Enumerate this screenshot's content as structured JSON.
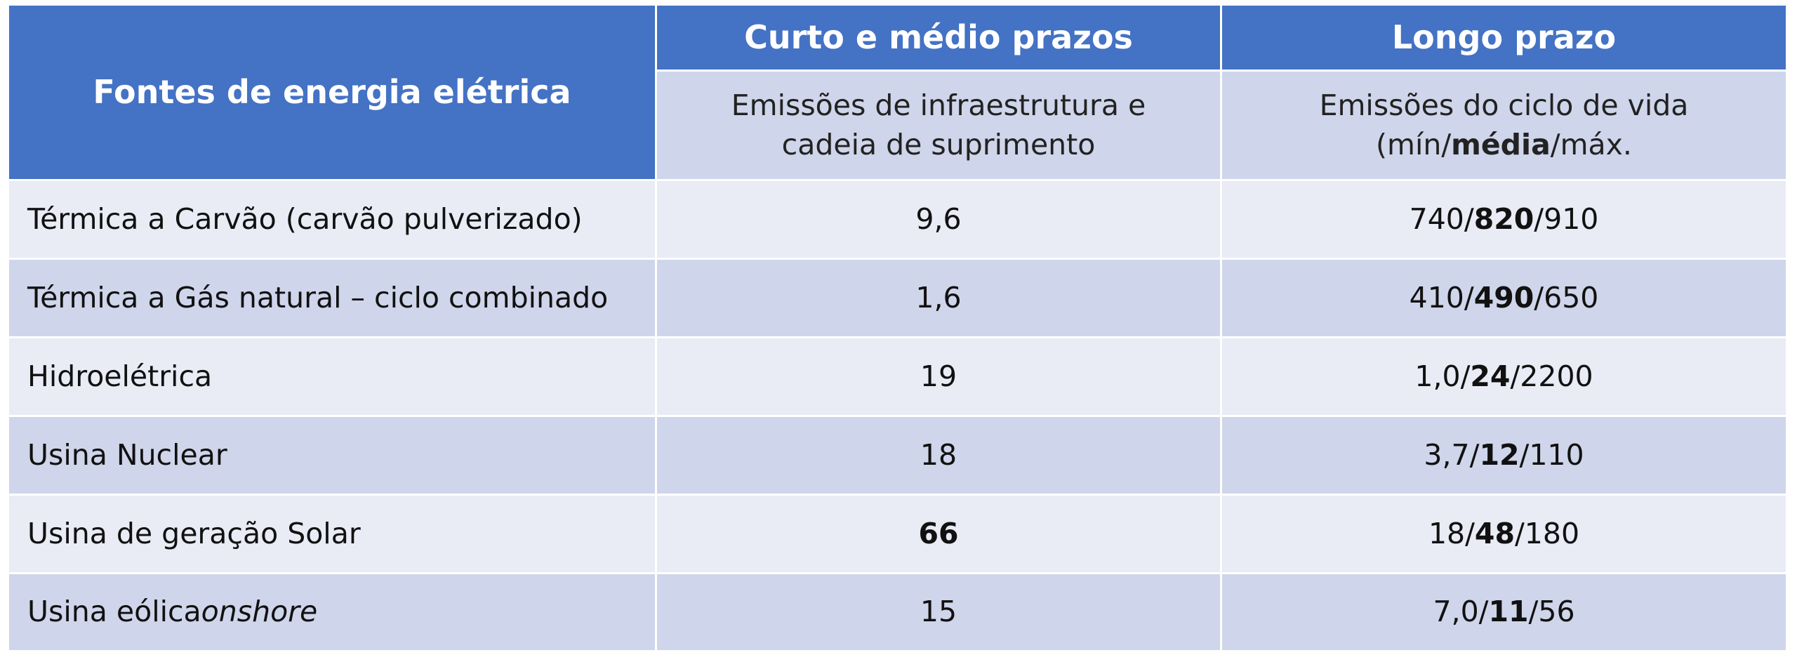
{
  "table": {
    "header": {
      "title": "Fontes de energia elétrica",
      "columns": [
        "Curto e médio prazos",
        "Longo prazo"
      ],
      "subheaders": [
        [
          "Emissões de infraestrutura e cadeia de suprimento"
        ],
        [
          "Emissões do ciclo de vida (mín/",
          "média",
          "/máx."
        ]
      ]
    },
    "rows": [
      {
        "source": [
          "Térmica a Carvão (carvão pulverizado)"
        ],
        "short": "9,6",
        "long": [
          "740/",
          "820",
          "/910"
        ]
      },
      {
        "source": [
          "Térmica a Gás natural – ciclo combinado"
        ],
        "short": "1,6",
        "long": [
          "410/",
          "490",
          "/650"
        ]
      },
      {
        "source": [
          "Hidroelétrica"
        ],
        "short": "19",
        "long": [
          "1,0/",
          "24",
          "/2200"
        ]
      },
      {
        "source": [
          "Usina Nuclear"
        ],
        "short": "18",
        "long": [
          "3,7/",
          "12",
          "/110"
        ]
      },
      {
        "source": [
          "Usina de geração Solar"
        ],
        "short": "66",
        "short_bold": true,
        "long": [
          "18/",
          "48",
          "/180"
        ]
      },
      {
        "source": [
          "Usina eólica ",
          "onshore"
        ],
        "short": "15",
        "long": [
          "7,0/",
          "11",
          "/56"
        ]
      }
    ]
  }
}
